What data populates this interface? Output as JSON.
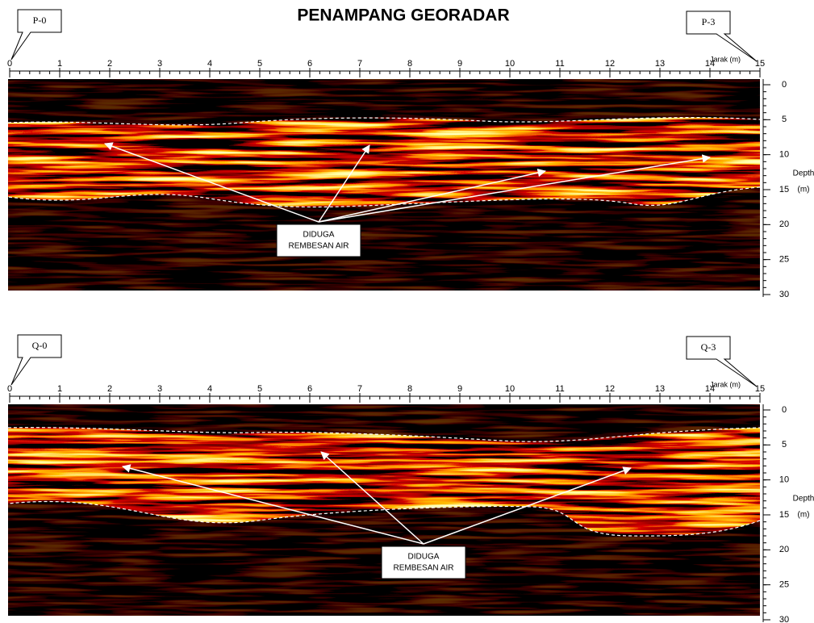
{
  "title": "PENAMPANG GEORADAR",
  "panels": [
    {
      "start_label": "P-0",
      "end_label": "P-3",
      "x_axis_label": "Jarak (m)",
      "y_axis_label": [
        "Depth",
        "(m)"
      ],
      "annotation": [
        "DIDUGA",
        "REMBESAN AIR"
      ],
      "xticks": [
        0,
        1,
        2,
        3,
        4,
        5,
        6,
        7,
        8,
        9,
        10,
        11,
        12,
        13,
        14,
        15
      ],
      "yticks": [
        0,
        5,
        10,
        15,
        20,
        25,
        30
      ]
    },
    {
      "start_label": "Q-0",
      "end_label": "Q-3",
      "x_axis_label": "Jarak (m)",
      "y_axis_label": [
        "Depth",
        "(m)"
      ],
      "annotation": [
        "DIDUGA",
        "REMBESAN AIR"
      ],
      "xticks": [
        0,
        1,
        2,
        3,
        4,
        5,
        6,
        7,
        8,
        9,
        10,
        11,
        12,
        13,
        14,
        15
      ],
      "yticks": [
        0,
        5,
        10,
        15,
        20,
        25,
        30
      ]
    }
  ]
}
